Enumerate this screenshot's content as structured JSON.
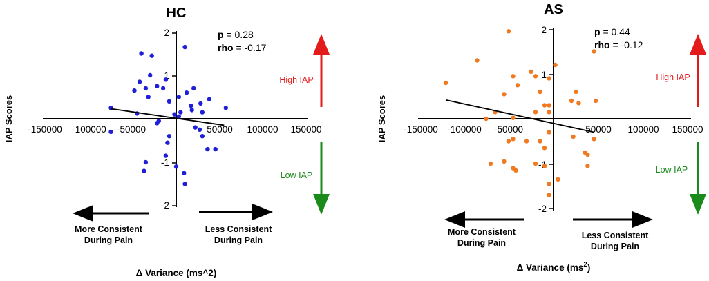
{
  "colors": {
    "hc": "#1f1fd8",
    "as": "#f07a22",
    "high": "#e31b1b",
    "low": "#1a8a1a",
    "axis": "#000000"
  },
  "chart_data": [
    {
      "type": "scatter",
      "title": "HC",
      "ylabel": "IAP Scores",
      "xlabel": "Δ Variance (ms^2)",
      "xlim": [
        -150000,
        150000
      ],
      "ylim": [
        -2,
        2
      ],
      "xticks": [
        "-150000",
        "-100000",
        "-50000",
        "50000",
        "100000",
        "150000"
      ],
      "yticks": [
        "2",
        "1",
        "-1",
        "-2"
      ],
      "stats": {
        "p_label": "p",
        "p_value": "= 0.28",
        "rho_label": "rho",
        "rho_value": "= -0.17"
      },
      "high_label": "High IAP",
      "low_label": "Low IAP",
      "left_note": [
        "More Consistent",
        "During  Pain"
      ],
      "right_note": [
        "Less Consistent",
        "During  Pain"
      ],
      "regression": {
        "x1": -75000,
        "y1": 0.23,
        "x2": 55000,
        "y2": -0.15
      },
      "points": [
        [
          -75000,
          0.25
        ],
        [
          -40000,
          1.5
        ],
        [
          -28000,
          1.45
        ],
        [
          -30000,
          1.0
        ],
        [
          -42000,
          0.85
        ],
        [
          -48000,
          0.65
        ],
        [
          -35000,
          0.7
        ],
        [
          -22000,
          0.75
        ],
        [
          -32000,
          0.5
        ],
        [
          -12000,
          0.9
        ],
        [
          -15000,
          0.7
        ],
        [
          -8000,
          0.4
        ],
        [
          3000,
          0.5
        ],
        [
          10000,
          1.65
        ],
        [
          12000,
          0.6
        ],
        [
          17000,
          0.3
        ],
        [
          20000,
          0.7
        ],
        [
          28000,
          0.35
        ],
        [
          18000,
          0.2
        ],
        [
          30000,
          0.15
        ],
        [
          57000,
          0.25
        ],
        [
          38000,
          0.45
        ],
        [
          -45000,
          0.12
        ],
        [
          -2000,
          0.1
        ],
        [
          5000,
          0.15
        ],
        [
          -20000,
          -0.05
        ],
        [
          -22000,
          -0.1
        ],
        [
          -75000,
          -0.3
        ],
        [
          -10000,
          -0.55
        ],
        [
          -12000,
          -0.85
        ],
        [
          -35000,
          -1.0
        ],
        [
          -37000,
          -1.2
        ],
        [
          0,
          -1.1
        ],
        [
          10000,
          -1.5
        ],
        [
          9000,
          -1.25
        ],
        [
          -8000,
          -0.4
        ],
        [
          22000,
          -0.2
        ],
        [
          30000,
          -0.4
        ],
        [
          36000,
          -0.7
        ],
        [
          45000,
          -0.7
        ],
        [
          27000,
          -0.25
        ],
        [
          3000,
          0.05
        ]
      ]
    },
    {
      "type": "scatter",
      "title": "AS",
      "ylabel": "IAP Scores",
      "xlabel": "Δ Variance (ms",
      "xlabel_sup": "2",
      "xlabel_end": ")",
      "xlim": [
        -150000,
        150000
      ],
      "ylim": [
        -2,
        2
      ],
      "xticks": [
        "-150000",
        "-100000",
        "-50000",
        "50000",
        "100000",
        "150000"
      ],
      "yticks": [
        "2",
        "1",
        "-1",
        "-2"
      ],
      "stats": {
        "p_label": "p",
        "p_value": "= 0.44",
        "rho_label": "rho",
        "rho_value": "= -0.12"
      },
      "high_label": "High IAP",
      "low_label": "Low IAP",
      "left_note": [
        "More Consistent",
        "During Pain"
      ],
      "right_note": [
        "Less Consistent",
        "During Pain"
      ],
      "regression": {
        "x1": -120000,
        "y1": 0.42,
        "x2": 45000,
        "y2": -0.3
      },
      "points": [
        [
          -50000,
          1.95
        ],
        [
          45000,
          1.5
        ],
        [
          -85000,
          1.3
        ],
        [
          -120000,
          0.8
        ],
        [
          2000,
          1.2
        ],
        [
          -25000,
          1.05
        ],
        [
          -45000,
          0.95
        ],
        [
          -20000,
          0.95
        ],
        [
          -5000,
          0.9
        ],
        [
          -40000,
          0.75
        ],
        [
          -15000,
          0.6
        ],
        [
          25000,
          0.6
        ],
        [
          -55000,
          0.55
        ],
        [
          20000,
          0.4
        ],
        [
          28000,
          0.35
        ],
        [
          47000,
          0.4
        ],
        [
          -10000,
          0.3
        ],
        [
          -5000,
          0.3
        ],
        [
          -65000,
          0.15
        ],
        [
          -5000,
          0.15
        ],
        [
          -45000,
          0.02
        ],
        [
          -75000,
          0.0
        ],
        [
          -50000,
          -0.5
        ],
        [
          -45000,
          -0.45
        ],
        [
          -30000,
          -0.5
        ],
        [
          -15000,
          -0.5
        ],
        [
          -10000,
          -0.65
        ],
        [
          45000,
          -0.45
        ],
        [
          22000,
          -0.4
        ],
        [
          35000,
          -0.75
        ],
        [
          38000,
          -0.8
        ],
        [
          -70000,
          -1.0
        ],
        [
          -55000,
          -0.95
        ],
        [
          -45000,
          -1.1
        ],
        [
          -42000,
          -1.15
        ],
        [
          -20000,
          -1.0
        ],
        [
          -10000,
          -1.05
        ],
        [
          -5000,
          -1.45
        ],
        [
          5000,
          -1.35
        ],
        [
          -5000,
          -1.7
        ],
        [
          38000,
          -1.05
        ],
        [
          -5000,
          -0.3
        ],
        [
          -20000,
          0.15
        ]
      ]
    }
  ]
}
